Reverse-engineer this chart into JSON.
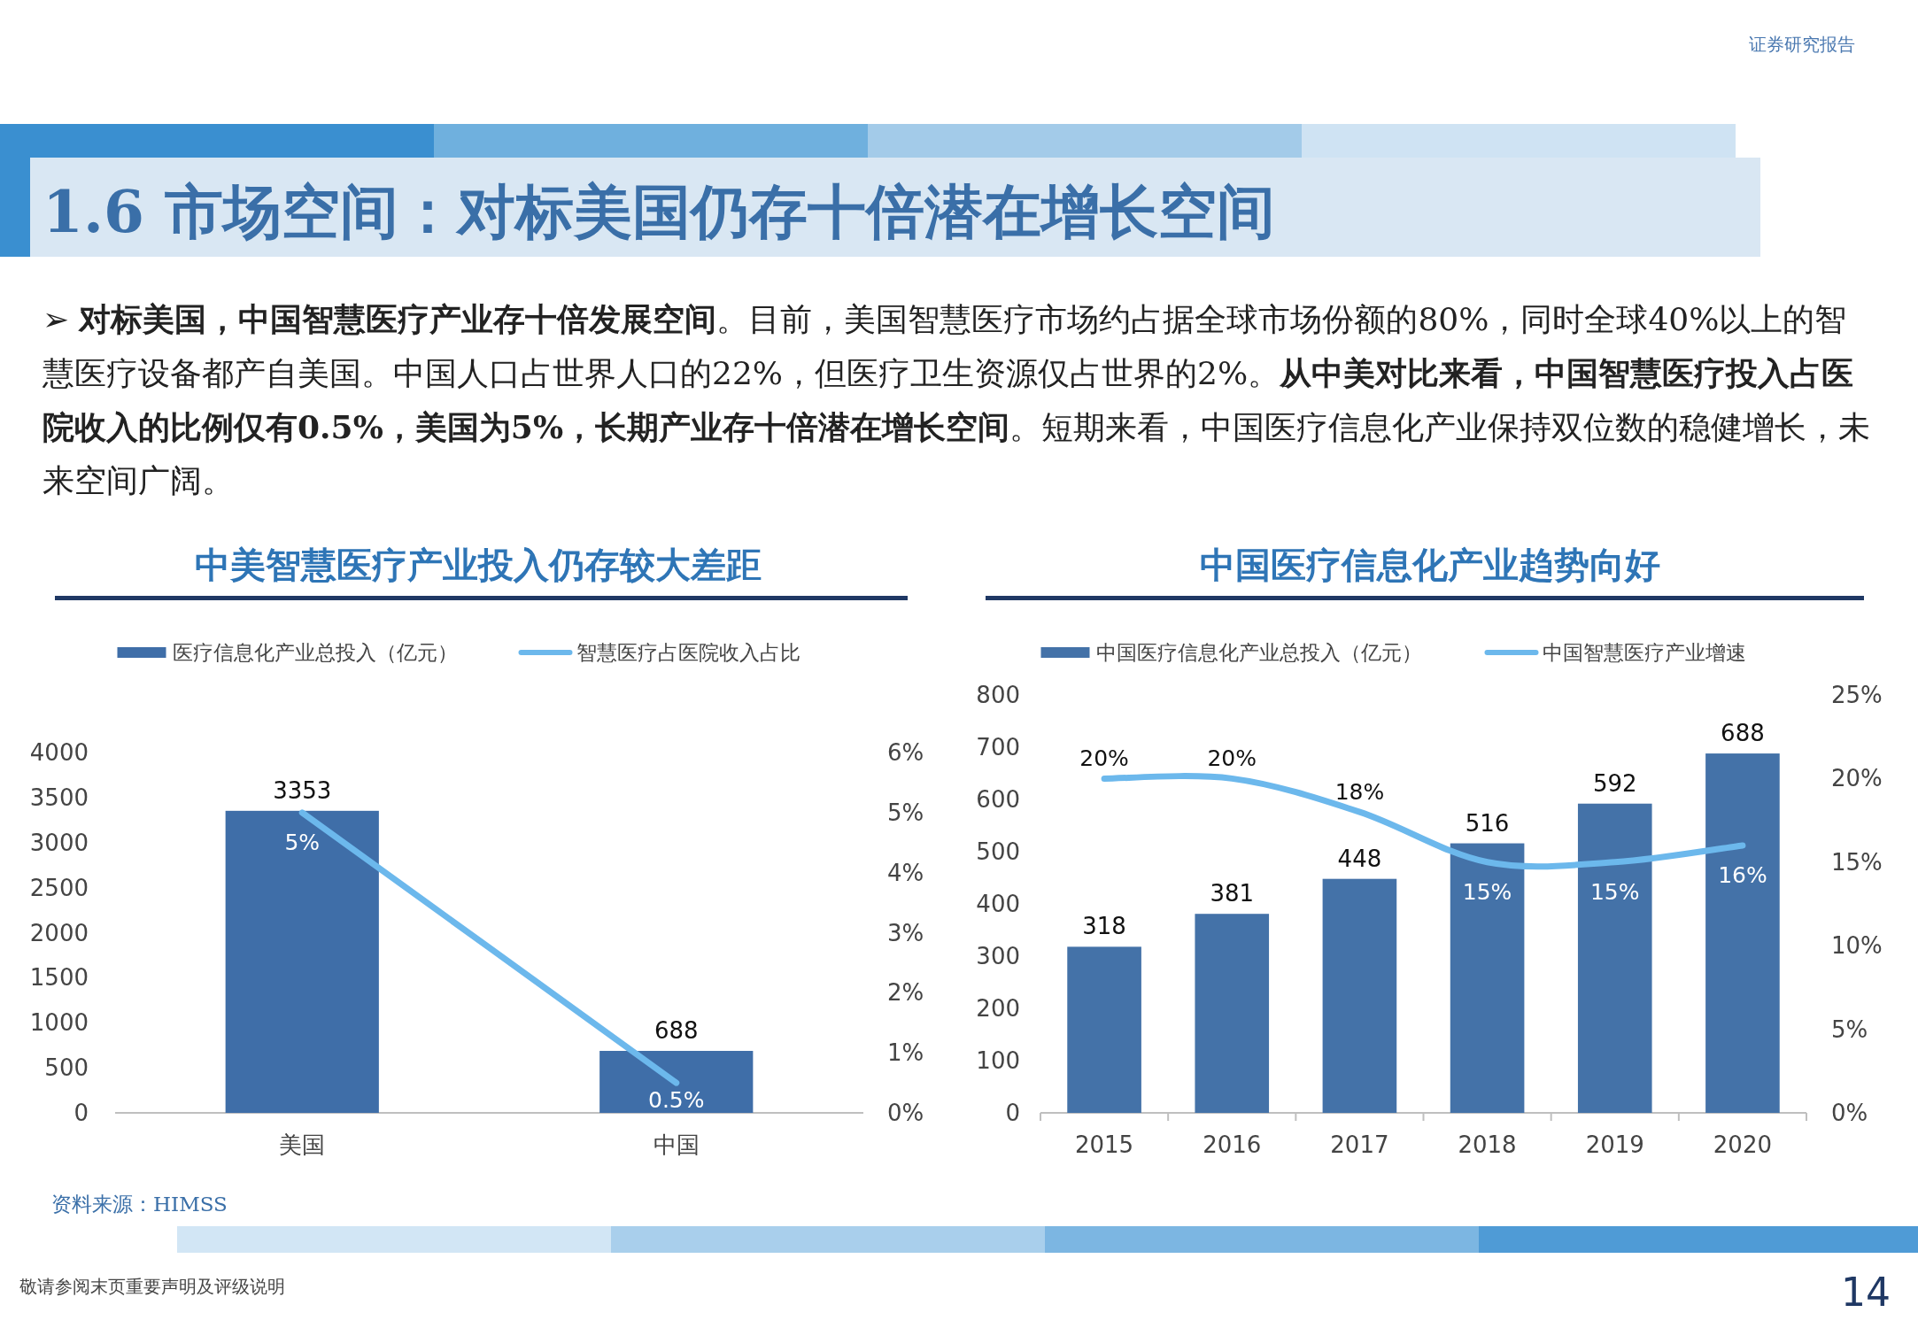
{
  "chart_data": [
    {
      "type": "other",
      "title": "1.6 市场空间：对标美国仍存十倍潜在增长空间",
      "subtitle": "证券研究报告",
      "annotations": [
        "➢ **对标美国，中国智慧医疗产业存十倍发展空间**。目前，美国智慧医疗市场约占据全球市场份额的80%，同时全球40%以上的智慧医疗设备都产自美国。中国人口占世界人口的22%，但医疗卫生资源仅占世界的2%。**从中美对比来看，中国智慧医疗投入占医院收入的比例仅有0.5%，美国为5%，长期产业存十倍潜在增长空间**。短期来看，中国医疗信息化产业保持双位数的稳健增长，未来空间广阔。",
        "敬请参阅末页重要声明及评级说明",
        "14"
      ]
    },
    {
      "type": "bar",
      "title": "中美智慧医疗产业投入仍存较大差距",
      "categories": [
        "美国",
        "中国"
      ],
      "series": [
        {
          "name": "医疗信息化产业总投入（亿元）",
          "color": "#3f6ea8",
          "values": [
            3353,
            688
          ],
          "value_labels": [
            "3353",
            "688"
          ]
        },
        {
          "name": "智慧医疗占医院收入占比",
          "type": "line",
          "axis": "y2",
          "color": "#6cb8ec",
          "values": [
            5,
            0.5
          ],
          "value_labels": [
            "5%",
            "0.5%"
          ]
        }
      ],
      "ylim": [
        0,
        4000
      ],
      "yticks": [
        0,
        500,
        1000,
        1500,
        2000,
        2500,
        3000,
        3500,
        4000
      ],
      "y2lim": [
        0,
        6
      ],
      "y2ticks": [
        {
          "value": 0,
          "label": "0%"
        },
        {
          "value": 1,
          "label": "1%"
        },
        {
          "value": 2,
          "label": "2%"
        },
        {
          "value": 3,
          "label": "3%"
        },
        {
          "value": 4,
          "label": "4%"
        },
        {
          "value": 5,
          "label": "5%"
        },
        {
          "value": 6,
          "label": "6%"
        }
      ],
      "legend": "top",
      "annotations": [
        "资料来源：HIMSS"
      ]
    },
    {
      "type": "bar",
      "title": "中国医疗信息化产业趋势向好",
      "categories": [
        "2015",
        "2016",
        "2017",
        "2018",
        "2019",
        "2020"
      ],
      "series": [
        {
          "name": "中国医疗信息化产业总投入（亿元）",
          "color": "#4472a8",
          "values": [
            318,
            381,
            448,
            516,
            592,
            688
          ],
          "value_labels": [
            "318",
            "381",
            "448",
            "516",
            "592",
            "688"
          ]
        },
        {
          "name": "中国智慧医疗产业增速",
          "type": "line",
          "axis": "y2",
          "color": "#6cb8ec",
          "values": [
            20,
            20,
            18,
            15,
            15,
            16
          ],
          "value_labels": [
            "20%",
            "20%",
            "18%",
            "15%",
            "15%",
            "16%"
          ]
        }
      ],
      "ylim": [
        0,
        800
      ],
      "yticks": [
        0,
        100,
        200,
        300,
        400,
        500,
        600,
        700,
        800
      ],
      "y2lim": [
        0,
        25
      ],
      "y2ticks": [
        {
          "value": 0,
          "label": "0%"
        },
        {
          "value": 5,
          "label": "5%"
        },
        {
          "value": 10,
          "label": "10%"
        },
        {
          "value": 15,
          "label": "15%"
        },
        {
          "value": 20,
          "label": "20%"
        },
        {
          "value": 25,
          "label": "25%"
        }
      ],
      "legend": "top"
    }
  ]
}
